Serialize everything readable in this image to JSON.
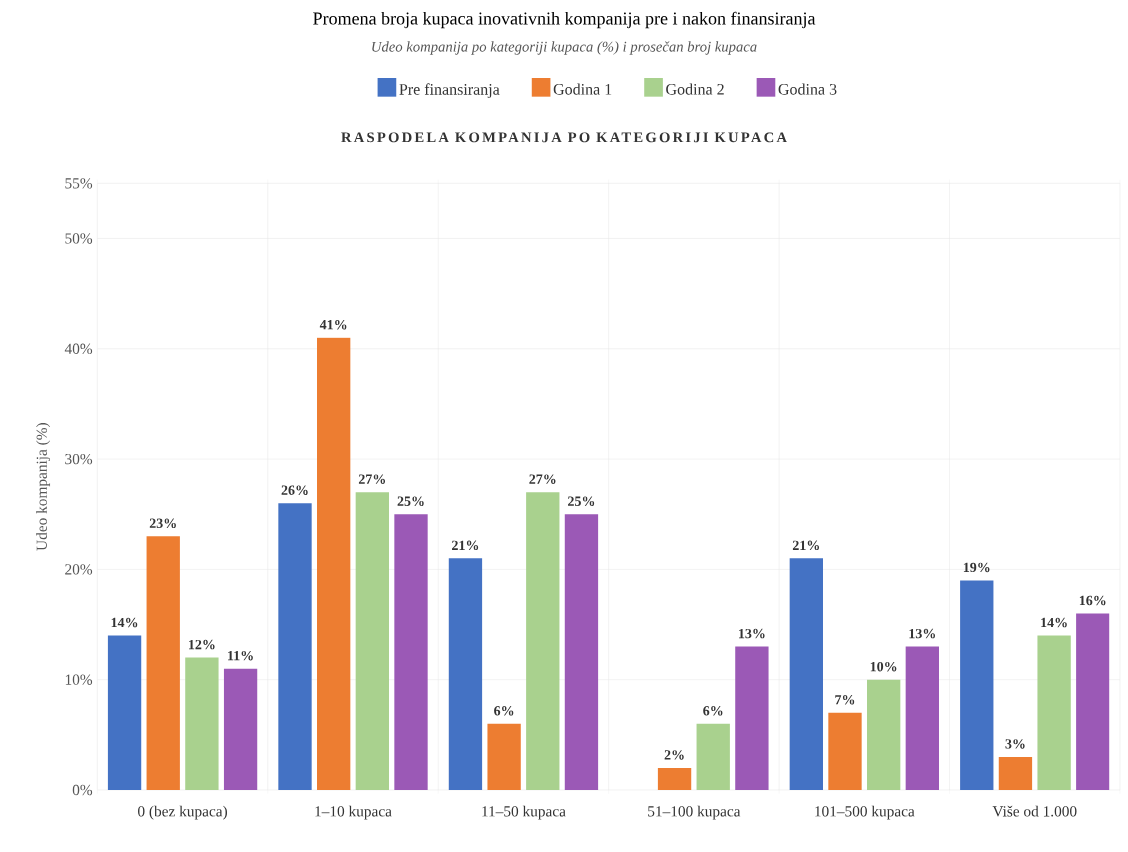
{
  "chart_data": {
    "type": "bar",
    "title": "Promena broja kupaca inovativnih kompanija pre i nakon finansiranja",
    "subtitle": "Udeo kompanija po kategoriji kupaca (%) i prosečan broj kupaca",
    "annotations": [
      "RASPODELA KOMPANIJA PO KATEGORIJI KUPACA"
    ],
    "ylabel": "Udeo kompanija (%)",
    "categories": [
      "0 (bez kupaca)",
      "1–10 kupaca",
      "11–50 kupaca",
      "51–100 kupaca",
      "101–500 kupaca",
      "Više od 1.000"
    ],
    "series": [
      {
        "name": "Pre finansiranja",
        "color": "#4472c4",
        "values": [
          14,
          26,
          21,
          null,
          21,
          19
        ],
        "value_labels": [
          "14%",
          "26%",
          "21%",
          null,
          "21%",
          "19%"
        ]
      },
      {
        "name": "Godina 1",
        "color": "#ed7d31",
        "values": [
          23,
          41,
          6,
          2,
          7,
          3
        ],
        "value_labels": [
          "23%",
          "41%",
          "6%",
          "2%",
          "7%",
          "3%"
        ]
      },
      {
        "name": "Godina 2",
        "color": "#a9d18e",
        "values": [
          12,
          27,
          27,
          6,
          10,
          14
        ],
        "value_labels": [
          "12%",
          "27%",
          "27%",
          "6%",
          "10%",
          "14%"
        ]
      },
      {
        "name": "Godina 3",
        "color": "#9b59b6",
        "values": [
          11,
          25,
          25,
          13,
          13,
          16
        ],
        "value_labels": [
          "11%",
          "25%",
          "25%",
          "13%",
          "13%",
          "16%"
        ]
      }
    ],
    "ylim": [
      0,
      55
    ],
    "yticks": [
      {
        "value": 0,
        "label": "0%"
      },
      {
        "value": 10,
        "label": "10%"
      },
      {
        "value": 20,
        "label": "20%"
      },
      {
        "value": 30,
        "label": "30%"
      },
      {
        "value": 40,
        "label": "40%"
      },
      {
        "value": 50,
        "label": "50%"
      },
      {
        "value": 55,
        "label": "55%"
      }
    ],
    "grid": true,
    "legend": "top"
  }
}
